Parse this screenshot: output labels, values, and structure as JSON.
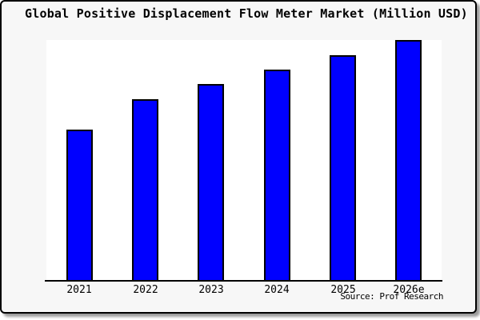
{
  "title": "Global Positive Displacement Flow Meter Market (Million USD)",
  "source_note": "Source: Prof Research",
  "colors": {
    "bar_fill": "#0000ff",
    "bar_border": "#000000",
    "plot_background": "#ffffff",
    "card_background": "#f7f7f7",
    "card_border": "#000000",
    "axis": "#000000",
    "text": "#000000"
  },
  "chart_data": {
    "type": "bar",
    "title": "Global Positive Displacement Flow Meter Market (Million USD)",
    "categories": [
      "2021",
      "2022",
      "2023",
      "2024",
      "2025",
      "2026e"
    ],
    "values": [
      62.8,
      75.2,
      81.6,
      87.5,
      93.7,
      100
    ],
    "units": "relative index (no y-axis tick labels shown; 2026e bar = 100)",
    "xlabel": "",
    "ylabel": "",
    "grid": false,
    "legend": false,
    "bar_color": "#0000ff",
    "annotations": [
      "Source: Prof Research"
    ]
  }
}
